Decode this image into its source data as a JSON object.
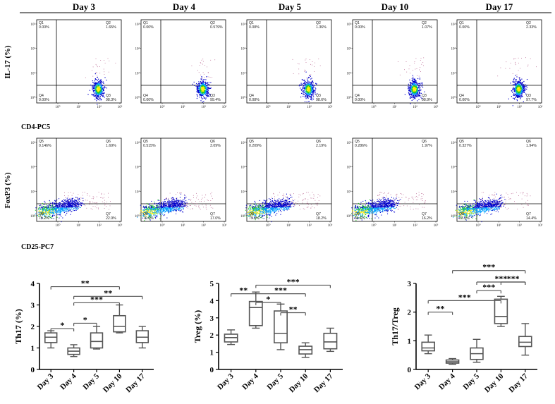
{
  "figure": {
    "days": [
      "Day 3",
      "Day 4",
      "Day 5",
      "Day 10",
      "Day 17"
    ]
  },
  "flow_row1": {
    "ylabel": "IL-17 (%)",
    "xlabel": "CD4-PC5",
    "quadrant_names": [
      "Q1",
      "Q2",
      "Q4",
      "Q3"
    ],
    "panels": [
      {
        "q1": "0.00%",
        "q2": "1.65%",
        "q4": "0.00%",
        "q3": "98.3%"
      },
      {
        "q1": "0.00%",
        "q2": "0.579%",
        "q4": "0.00%",
        "q3": "99.4%"
      },
      {
        "q1": "0.08%",
        "q2": "1.36%",
        "q4": "0.08%",
        "q3": "98.6%"
      },
      {
        "q1": "0.00%",
        "q2": "1.07%",
        "q4": "0.00%",
        "q3": "98.9%"
      },
      {
        "q1": "0.00%",
        "q2": "2.33%",
        "q4": "0.00%",
        "q3": "97.7%"
      }
    ]
  },
  "flow_row2": {
    "ylabel": "FoxP3 (%)",
    "xlabel": "CD25-PC7",
    "quadrant_names": [
      "Q5",
      "Q6",
      "Q8",
      "Q7"
    ],
    "panels": [
      {
        "q5": "0.146%",
        "q6": "1.69%",
        "q8": "75.2%",
        "q7": "22.9%"
      },
      {
        "q5": "0.515%",
        "q6": "3.09%",
        "q8": "79.4%",
        "q7": "17.0%"
      },
      {
        "q5": "0.209%",
        "q6": "2.19%",
        "q8": "79.3%",
        "q7": "18.2%"
      },
      {
        "q5": "0.286%",
        "q6": "1.97%",
        "q8": "81.6%",
        "q7": "16.2%"
      },
      {
        "q5": "0.327%",
        "q6": "1.94%",
        "q8": "83.3%",
        "q7": "14.4%"
      }
    ]
  },
  "log_ticks": [
    "10⁰",
    "10¹",
    "10²",
    "10³"
  ],
  "colors": {
    "box": "#555555",
    "axis": "#000000",
    "density_hi": "#ffee00",
    "density_mid": "#00c000",
    "density_lo": "#0000cc"
  },
  "chart_data": [
    {
      "type": "box",
      "title": "",
      "ylabel": "Th17 (%)",
      "xlabel": "",
      "categories": [
        "Day 3",
        "Day 4",
        "Day 5",
        "Day 10",
        "Day 17"
      ],
      "ylim": [
        0,
        4
      ],
      "yticks": [
        "0",
        "1",
        "2",
        "3",
        "4"
      ],
      "boxes": [
        {
          "min": 1.0,
          "q1": 1.25,
          "median": 1.5,
          "q3": 1.7,
          "max": 1.8
        },
        {
          "min": 0.6,
          "q1": 0.7,
          "median": 0.85,
          "q3": 1.0,
          "max": 1.15
        },
        {
          "min": 0.95,
          "q1": 1.0,
          "median": 1.3,
          "q3": 1.7,
          "max": 2.0
        },
        {
          "min": 1.7,
          "q1": 1.75,
          "median": 2.0,
          "q3": 2.5,
          "max": 3.0
        },
        {
          "min": 1.0,
          "q1": 1.25,
          "median": 1.5,
          "q3": 1.8,
          "max": 2.0
        }
      ],
      "significance": [
        {
          "from": 0,
          "to": 1,
          "y": 1.9,
          "label": "*"
        },
        {
          "from": 1,
          "to": 2,
          "y": 2.15,
          "label": "*"
        },
        {
          "from": 1,
          "to": 3,
          "y": 3.1,
          "label": "***"
        },
        {
          "from": 1,
          "to": 4,
          "y": 3.4,
          "label": "**"
        },
        {
          "from": 0,
          "to": 3,
          "y": 3.85,
          "label": "**"
        }
      ]
    },
    {
      "type": "box",
      "title": "",
      "ylabel": "Treg (%)",
      "xlabel": "",
      "categories": [
        "Day 3",
        "Day 4",
        "Day 5",
        "Day 10",
        "Day 17"
      ],
      "ylim": [
        0,
        5
      ],
      "yticks": [
        "0",
        "1",
        "2",
        "3",
        "4",
        "5"
      ],
      "boxes": [
        {
          "min": 1.45,
          "q1": 1.6,
          "median": 1.85,
          "q3": 2.05,
          "max": 2.3
        },
        {
          "min": 2.4,
          "q1": 2.55,
          "median": 3.6,
          "q3": 3.95,
          "max": 4.5
        },
        {
          "min": 1.15,
          "q1": 1.55,
          "median": 2.1,
          "q3": 3.4,
          "max": 3.8
        },
        {
          "min": 0.7,
          "q1": 0.9,
          "median": 1.15,
          "q3": 1.35,
          "max": 1.55
        },
        {
          "min": 1.05,
          "q1": 1.2,
          "median": 1.6,
          "q3": 2.1,
          "max": 2.4
        }
      ],
      "significance": [
        {
          "from": 0,
          "to": 1,
          "y": 4.4,
          "label": "**"
        },
        {
          "from": 1,
          "to": 2,
          "y": 3.9,
          "label": "*"
        },
        {
          "from": 2,
          "to": 3,
          "y": 3.3,
          "label": "**"
        },
        {
          "from": 1,
          "to": 3,
          "y": 4.4,
          "label": "***"
        },
        {
          "from": 1,
          "to": 4,
          "y": 4.9,
          "label": "***"
        }
      ]
    },
    {
      "type": "box",
      "title": "",
      "ylabel": "Th17/Treg",
      "xlabel": "",
      "categories": [
        "Day 3",
        "Day 4",
        "Day 5",
        "Day 10",
        "Day 17"
      ],
      "ylim": [
        0,
        3
      ],
      "yticks": [
        "0",
        "1",
        "2",
        "3"
      ],
      "boxes": [
        {
          "min": 0.55,
          "q1": 0.65,
          "median": 0.75,
          "q3": 0.95,
          "max": 1.2
        },
        {
          "min": 0.18,
          "q1": 0.22,
          "median": 0.27,
          "q3": 0.33,
          "max": 0.38
        },
        {
          "min": 0.25,
          "q1": 0.35,
          "median": 0.55,
          "q3": 0.75,
          "max": 1.05
        },
        {
          "min": 1.5,
          "q1": 1.6,
          "median": 1.85,
          "q3": 2.45,
          "max": 2.55
        },
        {
          "min": 0.5,
          "q1": 0.8,
          "median": 0.95,
          "q3": 1.15,
          "max": 1.6
        }
      ],
      "significance": [
        {
          "from": 0,
          "to": 1,
          "y": 2.0,
          "label": "**"
        },
        {
          "from": 0,
          "to": 3,
          "y": 2.4,
          "label": "***"
        },
        {
          "from": 2,
          "to": 3,
          "y": 2.75,
          "label": "***"
        },
        {
          "from": 3,
          "to": 4,
          "y": 3.05,
          "label": "***"
        },
        {
          "from": 2,
          "to": 4,
          "y": 3.05,
          "label": "***"
        },
        {
          "from": 1,
          "to": 4,
          "y": 3.45,
          "label": "***"
        }
      ]
    }
  ]
}
